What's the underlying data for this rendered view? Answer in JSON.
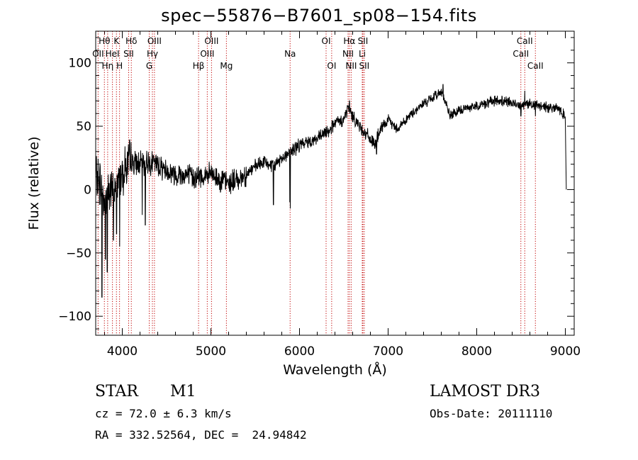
{
  "chart_data": {
    "type": "line",
    "title": "spec−55876−B7601_sp08−154.fits",
    "xlabel": "Wavelength (Å)",
    "ylabel": "Flux (relative)",
    "xlim": [
      3700,
      9100
    ],
    "ylim": [
      -115,
      125
    ],
    "x_ticks": [
      4000,
      5000,
      6000,
      7000,
      8000,
      9000
    ],
    "x_tick_labels": [
      "4000",
      "5000",
      "6000",
      "7000",
      "8000",
      "9000"
    ],
    "y_ticks": [
      -100,
      -50,
      0,
      50,
      100
    ],
    "y_tick_labels": [
      "−100",
      "−50",
      "0",
      "50",
      "100"
    ],
    "series": [
      {
        "name": "flux",
        "anchors": [
          [
            3700,
            10
          ],
          [
            3750,
            5
          ],
          [
            3800,
            -10
          ],
          [
            3850,
            0
          ],
          [
            3900,
            -5
          ],
          [
            3950,
            5
          ],
          [
            4000,
            15
          ],
          [
            4100,
            22
          ],
          [
            4200,
            20
          ],
          [
            4300,
            22
          ],
          [
            4400,
            20
          ],
          [
            4500,
            15
          ],
          [
            4600,
            12
          ],
          [
            4700,
            12
          ],
          [
            4800,
            10
          ],
          [
            4900,
            10
          ],
          [
            5000,
            12
          ],
          [
            5100,
            8
          ],
          [
            5200,
            5
          ],
          [
            5300,
            8
          ],
          [
            5400,
            12
          ],
          [
            5500,
            18
          ],
          [
            5600,
            22
          ],
          [
            5700,
            18
          ],
          [
            5800,
            25
          ],
          [
            5900,
            30
          ],
          [
            6000,
            35
          ],
          [
            6100,
            38
          ],
          [
            6200,
            40
          ],
          [
            6300,
            45
          ],
          [
            6400,
            52
          ],
          [
            6500,
            55
          ],
          [
            6550,
            65
          ],
          [
            6600,
            58
          ],
          [
            6700,
            48
          ],
          [
            6800,
            40
          ],
          [
            6850,
            35
          ],
          [
            6900,
            45
          ],
          [
            7000,
            55
          ],
          [
            7100,
            48
          ],
          [
            7200,
            55
          ],
          [
            7300,
            62
          ],
          [
            7400,
            68
          ],
          [
            7500,
            72
          ],
          [
            7600,
            78
          ],
          [
            7700,
            58
          ],
          [
            7800,
            62
          ],
          [
            7900,
            65
          ],
          [
            8000,
            66
          ],
          [
            8100,
            68
          ],
          [
            8200,
            70
          ],
          [
            8300,
            70
          ],
          [
            8400,
            68
          ],
          [
            8500,
            67
          ],
          [
            8600,
            68
          ],
          [
            8700,
            66
          ],
          [
            8800,
            65
          ],
          [
            8900,
            65
          ],
          [
            9000,
            58
          ],
          [
            9010,
            0
          ]
        ],
        "features": [
          {
            "x": 3770,
            "y": -85
          },
          {
            "x": 3810,
            "y": -55
          },
          {
            "x": 3830,
            "y": -65
          },
          {
            "x": 3900,
            "y": -40
          },
          {
            "x": 3935,
            "y": -35
          },
          {
            "x": 3970,
            "y": -45
          },
          {
            "x": 4225,
            "y": -20
          },
          {
            "x": 4260,
            "y": -28
          },
          {
            "x": 5705,
            "y": -12
          },
          {
            "x": 5890,
            "y": -10
          },
          {
            "x": 5896,
            "y": -15
          },
          {
            "x": 6563,
            "y": 70
          },
          {
            "x": 6870,
            "y": 28
          },
          {
            "x": 7620,
            "y": 83
          },
          {
            "x": 8498,
            "y": 58
          },
          {
            "x": 8542,
            "y": 78
          },
          {
            "x": 8662,
            "y": 58
          }
        ]
      }
    ],
    "lines": [
      {
        "label": "Hθ",
        "x": 3798,
        "row": 0
      },
      {
        "label": "OII",
        "x": 3727,
        "row": 1
      },
      {
        "label": "Hη",
        "x": 3835,
        "row": 2
      },
      {
        "label": "HeI",
        "x": 3889,
        "row": 1
      },
      {
        "label": "K",
        "x": 3934,
        "row": 0
      },
      {
        "label": "H",
        "x": 3969,
        "row": 2
      },
      {
        "label": "SII",
        "x": 4072,
        "row": 1
      },
      {
        "label": "Hδ",
        "x": 4102,
        "row": 0
      },
      {
        "label": "G",
        "x": 4304,
        "row": 2
      },
      {
        "label": "Hγ",
        "x": 4340,
        "row": 1
      },
      {
        "label": "OIII",
        "x": 4363,
        "row": 0
      },
      {
        "label": "Hβ",
        "x": 4861,
        "row": 2
      },
      {
        "label": "OIII",
        "x": 4959,
        "row": 1
      },
      {
        "label": "OIII",
        "x": 5007,
        "row": 0
      },
      {
        "label": "Mg",
        "x": 5175,
        "row": 2
      },
      {
        "label": "Na",
        "x": 5894,
        "row": 1
      },
      {
        "label": "OI",
        "x": 6300,
        "row": 0
      },
      {
        "label": "OI",
        "x": 6363,
        "row": 2
      },
      {
        "label": "NII",
        "x": 6548,
        "row": 1
      },
      {
        "label": "Hα",
        "x": 6563,
        "row": 0
      },
      {
        "label": "NII",
        "x": 6583,
        "row": 2
      },
      {
        "label": "Li",
        "x": 6708,
        "row": 1
      },
      {
        "label": "SII",
        "x": 6716,
        "row": 0
      },
      {
        "label": "SII",
        "x": 6731,
        "row": 2
      },
      {
        "label": "CaII",
        "x": 8498,
        "row": 1
      },
      {
        "label": "CaII",
        "x": 8542,
        "row": 0
      },
      {
        "label": "CaII",
        "x": 8662,
        "row": 2
      }
    ]
  },
  "info": {
    "object_class": "STAR",
    "subclass": "M1",
    "survey": "LAMOST DR3",
    "cz": "cz = 72.0 ± 6.3 km/s",
    "obs_date": "Obs-Date: 20111110",
    "coords": "RA = 332.52564, DEC =  24.94842"
  }
}
